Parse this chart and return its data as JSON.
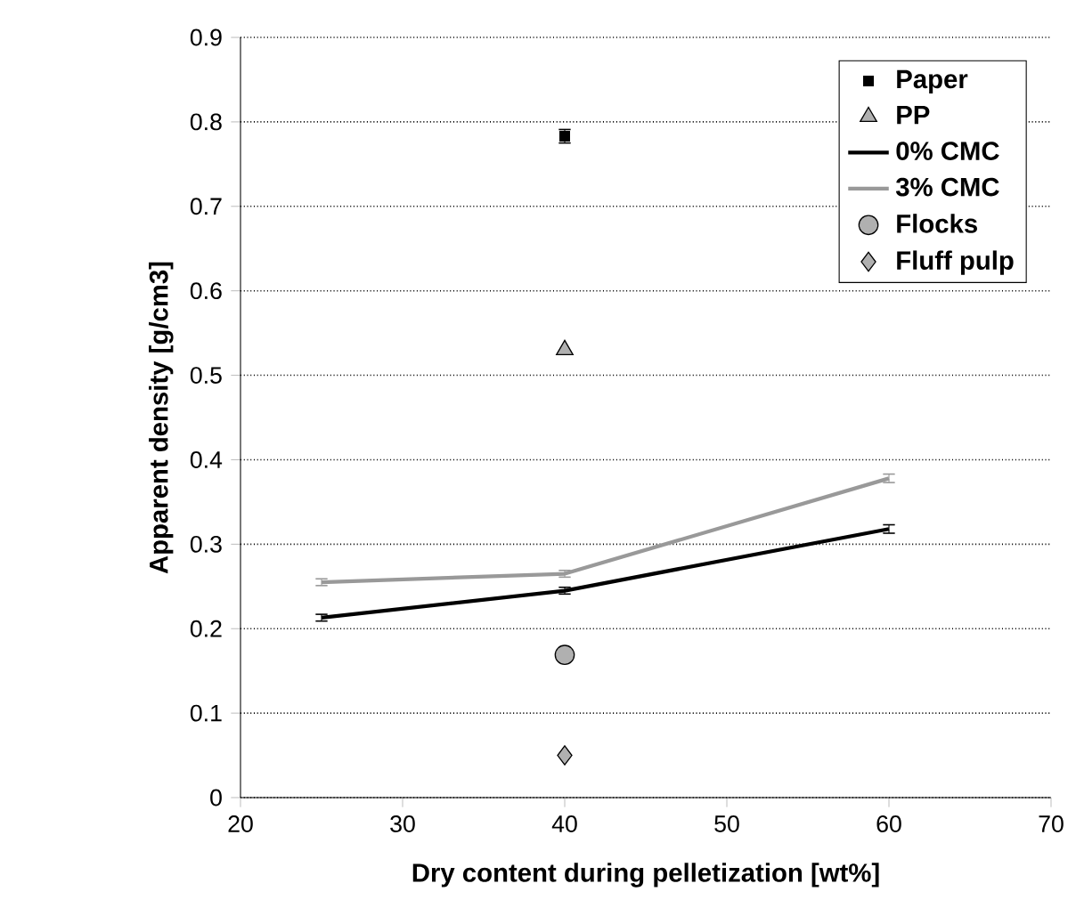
{
  "chart_data": {
    "type": "scatter",
    "xlabel": "Dry content during pelletization [wt%]",
    "ylabel": "Apparent density [g/cm3]",
    "xlim": [
      20,
      70
    ],
    "xticks": [
      20,
      30,
      40,
      50,
      60,
      70
    ],
    "ylim": [
      0,
      0.9
    ],
    "yticks": [
      0,
      0.1,
      0.2,
      0.3,
      0.4,
      0.5,
      0.6,
      0.7,
      0.8,
      0.9
    ],
    "grid": "y",
    "legend": "top right",
    "series": [
      {
        "name": "Paper",
        "marker": "square",
        "color": "#000000",
        "x": [
          40
        ],
        "values": [
          0.783
        ],
        "errors": [
          0.008
        ]
      },
      {
        "name": "PP",
        "marker": "triangle",
        "color": "#b0b0b0",
        "x": [
          40
        ],
        "values": [
          0.53
        ]
      },
      {
        "name": "0% CMC",
        "type": "line",
        "marker": "none",
        "color": "#000000",
        "x": [
          25,
          40,
          60
        ],
        "values": [
          0.213,
          0.245,
          0.318
        ],
        "errors": [
          0.004,
          0.004,
          0.005
        ]
      },
      {
        "name": "3% CMC",
        "type": "line",
        "marker": "none",
        "color": "#999999",
        "x": [
          25,
          40,
          60
        ],
        "values": [
          0.255,
          0.265,
          0.378
        ],
        "errors": [
          0.004,
          0.004,
          0.005
        ]
      },
      {
        "name": "Flocks",
        "marker": "circle",
        "color": "#b0b0b0",
        "x": [
          40
        ],
        "values": [
          0.169
        ]
      },
      {
        "name": "Fluff pulp",
        "marker": "diamond",
        "color": "#b0b0b0",
        "x": [
          40
        ],
        "values": [
          0.05
        ]
      }
    ]
  }
}
